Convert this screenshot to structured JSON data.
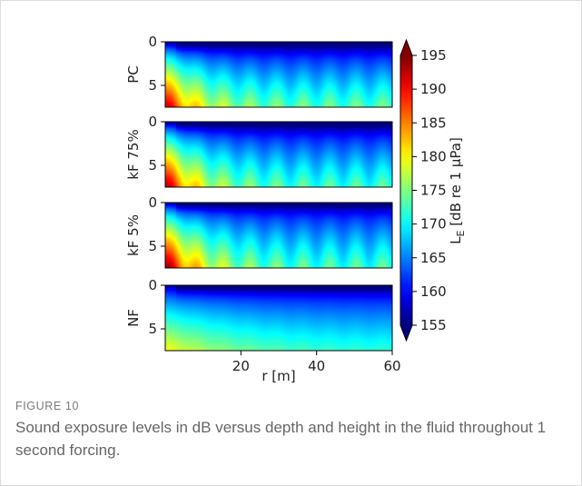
{
  "figure": {
    "label": "FIGURE 10",
    "caption": "Sound exposure levels in dB versus depth and height in the fluid throughout 1 second forcing."
  },
  "chart_data": {
    "type": "heatmap",
    "panels": [
      {
        "name": "PC",
        "surface_level": 157,
        "bottom_level": 173,
        "near_source_level": 192,
        "near_field_extent": 0.45,
        "decay_rate": 0.11,
        "ripple": 2.2
      },
      {
        "name": "kF 75%",
        "surface_level": 157,
        "bottom_level": 172,
        "near_source_level": 193,
        "near_field_extent": 0.5,
        "decay_rate": 0.11,
        "ripple": 2.4
      },
      {
        "name": "kF 5%",
        "surface_level": 158,
        "bottom_level": 172,
        "near_source_level": 194,
        "near_field_extent": 0.55,
        "decay_rate": 0.1,
        "ripple": 2.6
      },
      {
        "name": "NF",
        "surface_level": 158,
        "bottom_level": 171,
        "near_source_level": 180,
        "near_field_extent": 0.35,
        "decay_rate": 0.05,
        "ripple": 0.3
      }
    ],
    "x": {
      "label": "r [m]",
      "range": [
        0,
        60
      ],
      "ticks": [
        20,
        40,
        60
      ]
    },
    "y": {
      "range": [
        7.5,
        0
      ],
      "ticks": [
        0,
        5
      ],
      "inverted": true
    },
    "colorbar": {
      "label": "L",
      "label_subscript": "E",
      "label_suffix": " [dB re 1 μPa]",
      "range": [
        155,
        195
      ],
      "ticks": [
        155,
        160,
        165,
        170,
        175,
        180,
        185,
        190,
        195
      ],
      "colormap": "jet",
      "extend": "both"
    }
  }
}
